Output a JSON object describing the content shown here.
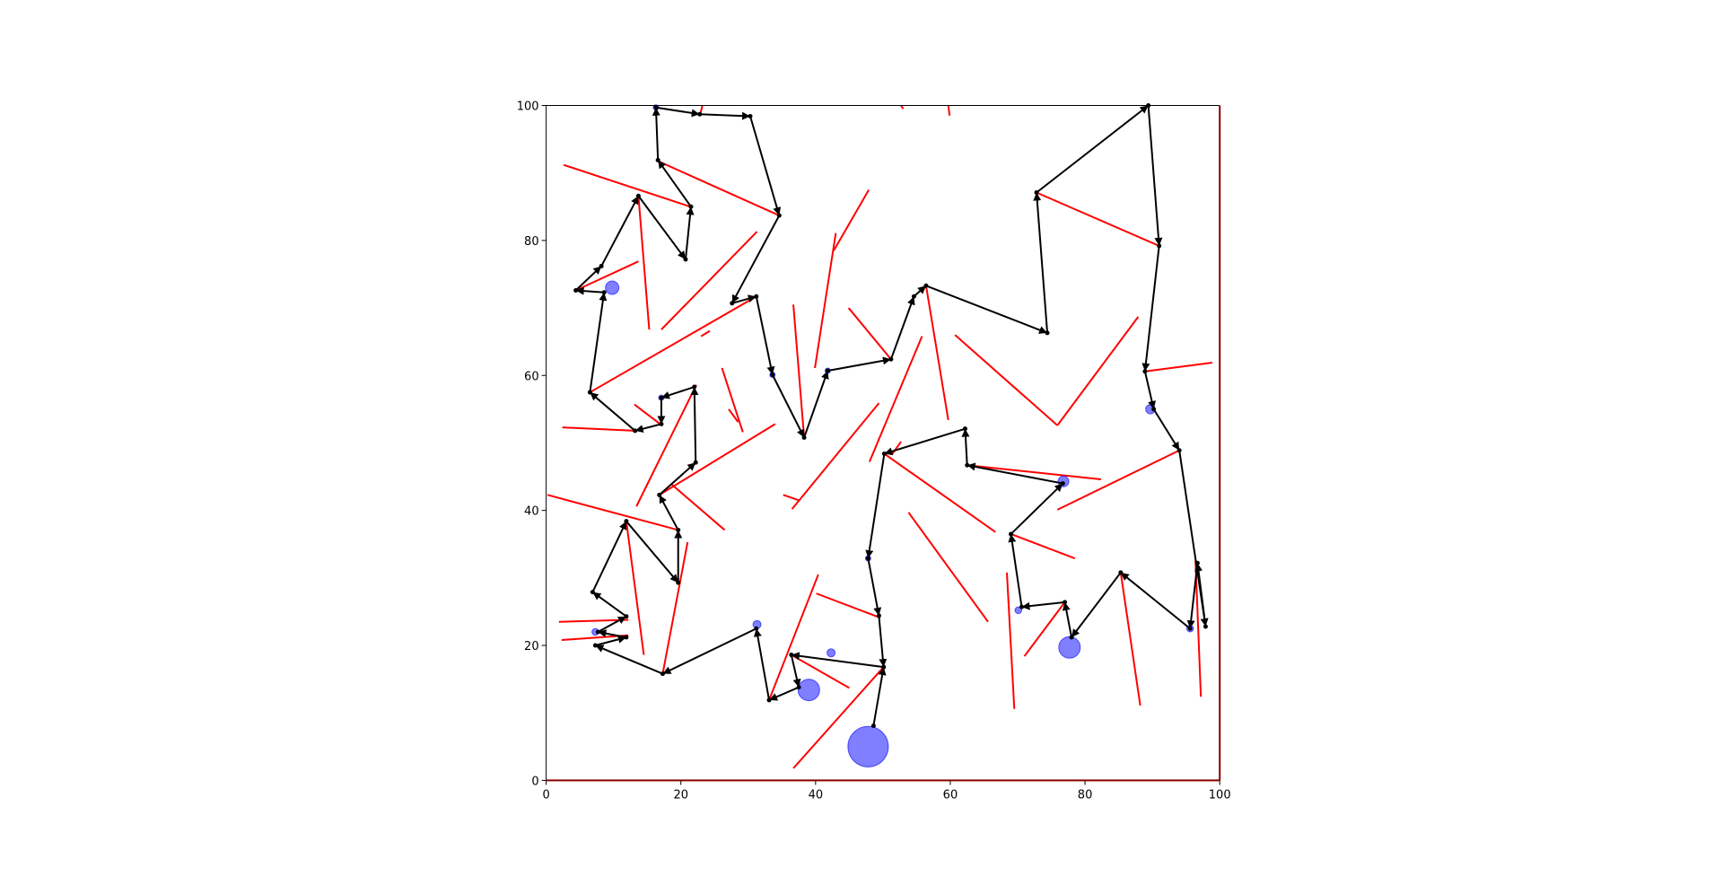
{
  "chart_data": {
    "type": "path",
    "xlim": [
      0,
      100
    ],
    "ylim": [
      0,
      100
    ],
    "xticks": [
      0,
      20,
      40,
      60,
      80,
      100
    ],
    "yticks": [
      0,
      20,
      40,
      60,
      80,
      100
    ],
    "segments": {
      "color": "red",
      "lines": [
        [
          2.6,
          91.2,
          21.7,
          84.9
        ],
        [
          16.3,
          91.9,
          34.6,
          83.7
        ],
        [
          13.7,
          86.6,
          15.3,
          66.8
        ],
        [
          4.4,
          72.6,
          13.7,
          76.9
        ],
        [
          17.1,
          66.8,
          31.3,
          81.3
        ],
        [
          6.5,
          57.5,
          31.2,
          71.7
        ],
        [
          23.0,
          65.8,
          24.3,
          66.6
        ],
        [
          2.4,
          52.3,
          13.2,
          51.8
        ],
        [
          13.1,
          55.7,
          16.8,
          52.9
        ],
        [
          13.4,
          40.6,
          22.3,
          58.6
        ],
        [
          16.8,
          42.3,
          34.0,
          52.8
        ],
        [
          26.1,
          61.1,
          29.2,
          51.6
        ],
        [
          27.1,
          55.0,
          28.5,
          53.1
        ],
        [
          18.7,
          43.8,
          26.5,
          37.1
        ],
        [
          0.2,
          42.3,
          19.6,
          37.1
        ],
        [
          36.7,
          70.5,
          38.3,
          50.8
        ],
        [
          39.9,
          61.1,
          43.0,
          81.1
        ],
        [
          42.7,
          78.5,
          47.9,
          87.5
        ],
        [
          44.9,
          70.0,
          51.2,
          62.4
        ],
        [
          48.0,
          47.2,
          55.8,
          65.8
        ],
        [
          36.5,
          40.2,
          49.4,
          55.9
        ],
        [
          35.2,
          42.3,
          37.5,
          41.5
        ],
        [
          56.4,
          73.3,
          59.7,
          53.4
        ],
        [
          60.7,
          66.0,
          75.9,
          52.6
        ],
        [
          75.9,
          52.6,
          87.9,
          68.7
        ],
        [
          72.8,
          87.1,
          91.0,
          79.2
        ],
        [
          88.9,
          60.6,
          98.9,
          61.9
        ],
        [
          75.9,
          40.1,
          94.0,
          48.9
        ],
        [
          62.5,
          46.7,
          82.4,
          44.6
        ],
        [
          50.2,
          48.4,
          66.7,
          36.8
        ],
        [
          51.4,
          48.4,
          52.7,
          50.2
        ],
        [
          53.8,
          39.7,
          65.6,
          23.5
        ],
        [
          69.0,
          36.5,
          78.5,
          32.9
        ],
        [
          68.4,
          30.8,
          69.5,
          10.6
        ],
        [
          71.0,
          18.4,
          77.0,
          26.4
        ],
        [
          85.3,
          30.8,
          88.2,
          11.1
        ],
        [
          96.4,
          32.6,
          97.2,
          12.4
        ],
        [
          1.9,
          23.5,
          12.2,
          23.8
        ],
        [
          2.3,
          20.8,
          12.2,
          21.5
        ],
        [
          11.9,
          38.4,
          14.5,
          18.6
        ],
        [
          17.3,
          15.8,
          21.0,
          35.3
        ],
        [
          33.1,
          11.9,
          40.4,
          30.5
        ],
        [
          36.4,
          18.6,
          45.0,
          13.7
        ],
        [
          40.1,
          27.7,
          49.6,
          24.1
        ],
        [
          36.7,
          1.8,
          50.1,
          16.8
        ],
        [
          52.7,
          100,
          53.0,
          99.5
        ],
        [
          59.7,
          100,
          59.9,
          98.5
        ],
        [
          23.2,
          100,
          22.8,
          98.4
        ]
      ]
    },
    "path": {
      "color": "black",
      "x": [
        48.6,
        50.1,
        36.4,
        37.5,
        33.1,
        31.2,
        17.3,
        7.3,
        11.9,
        7.7,
        11.9,
        6.9,
        11.9,
        19.6,
        19.6,
        16.8,
        22.2,
        22.0,
        17.1,
        17.1,
        13.2,
        6.5,
        8.6,
        4.4,
        8.2,
        13.7,
        20.7,
        21.5,
        16.6,
        16.3,
        22.8,
        30.3,
        34.6,
        27.6,
        31.2,
        33.6,
        38.3,
        41.8,
        51.2,
        54.6,
        56.4,
        74.4,
        72.8,
        89.4,
        91.0,
        88.9,
        90.2,
        94.0,
        97.9,
        96.7,
        95.6,
        85.3,
        78.0,
        77.0,
        70.6,
        69.0,
        76.7,
        62.5,
        62.2,
        50.2,
        47.8,
        49.4,
        50.1
      ],
      "y": [
        8.1,
        16.8,
        18.6,
        13.8,
        11.9,
        22.5,
        15.8,
        20.0,
        21.2,
        22.0,
        24.3,
        27.9,
        38.4,
        29.3,
        37.1,
        42.3,
        47.1,
        58.3,
        56.7,
        52.8,
        51.8,
        57.5,
        72.3,
        72.6,
        76.2,
        86.6,
        77.2,
        85.0,
        91.9,
        99.7,
        98.7,
        98.4,
        83.7,
        70.7,
        71.7,
        60.1,
        50.8,
        60.7,
        62.4,
        71.7,
        73.3,
        66.3,
        87.1,
        100.0,
        79.2,
        60.6,
        55.0,
        48.9,
        22.8,
        32.2,
        22.5,
        30.8,
        21.2,
        26.4,
        25.7,
        36.5,
        44.0,
        46.7,
        52.1,
        48.4,
        32.9,
        24.4,
        16.8
      ]
    },
    "circles": {
      "color": "blue",
      "x": [
        47.8,
        39.0,
        77.7,
        9.8,
        76.8,
        89.7,
        42.3,
        31.3,
        70.1,
        95.6,
        7.3,
        41.8,
        47.8,
        16.3,
        17.1,
        33.6
      ],
      "y": [
        5.0,
        13.4,
        19.7,
        73.0,
        44.3,
        55.0,
        18.9,
        23.1,
        25.2,
        22.5,
        22.0,
        60.7,
        32.9,
        99.7,
        56.7,
        60.1
      ],
      "radius": [
        3.0,
        1.6,
        1.6,
        1.0,
        0.8,
        0.7,
        0.6,
        0.6,
        0.5,
        0.5,
        0.5,
        0.4,
        0.4,
        0.4,
        0.4,
        0.4
      ]
    }
  }
}
